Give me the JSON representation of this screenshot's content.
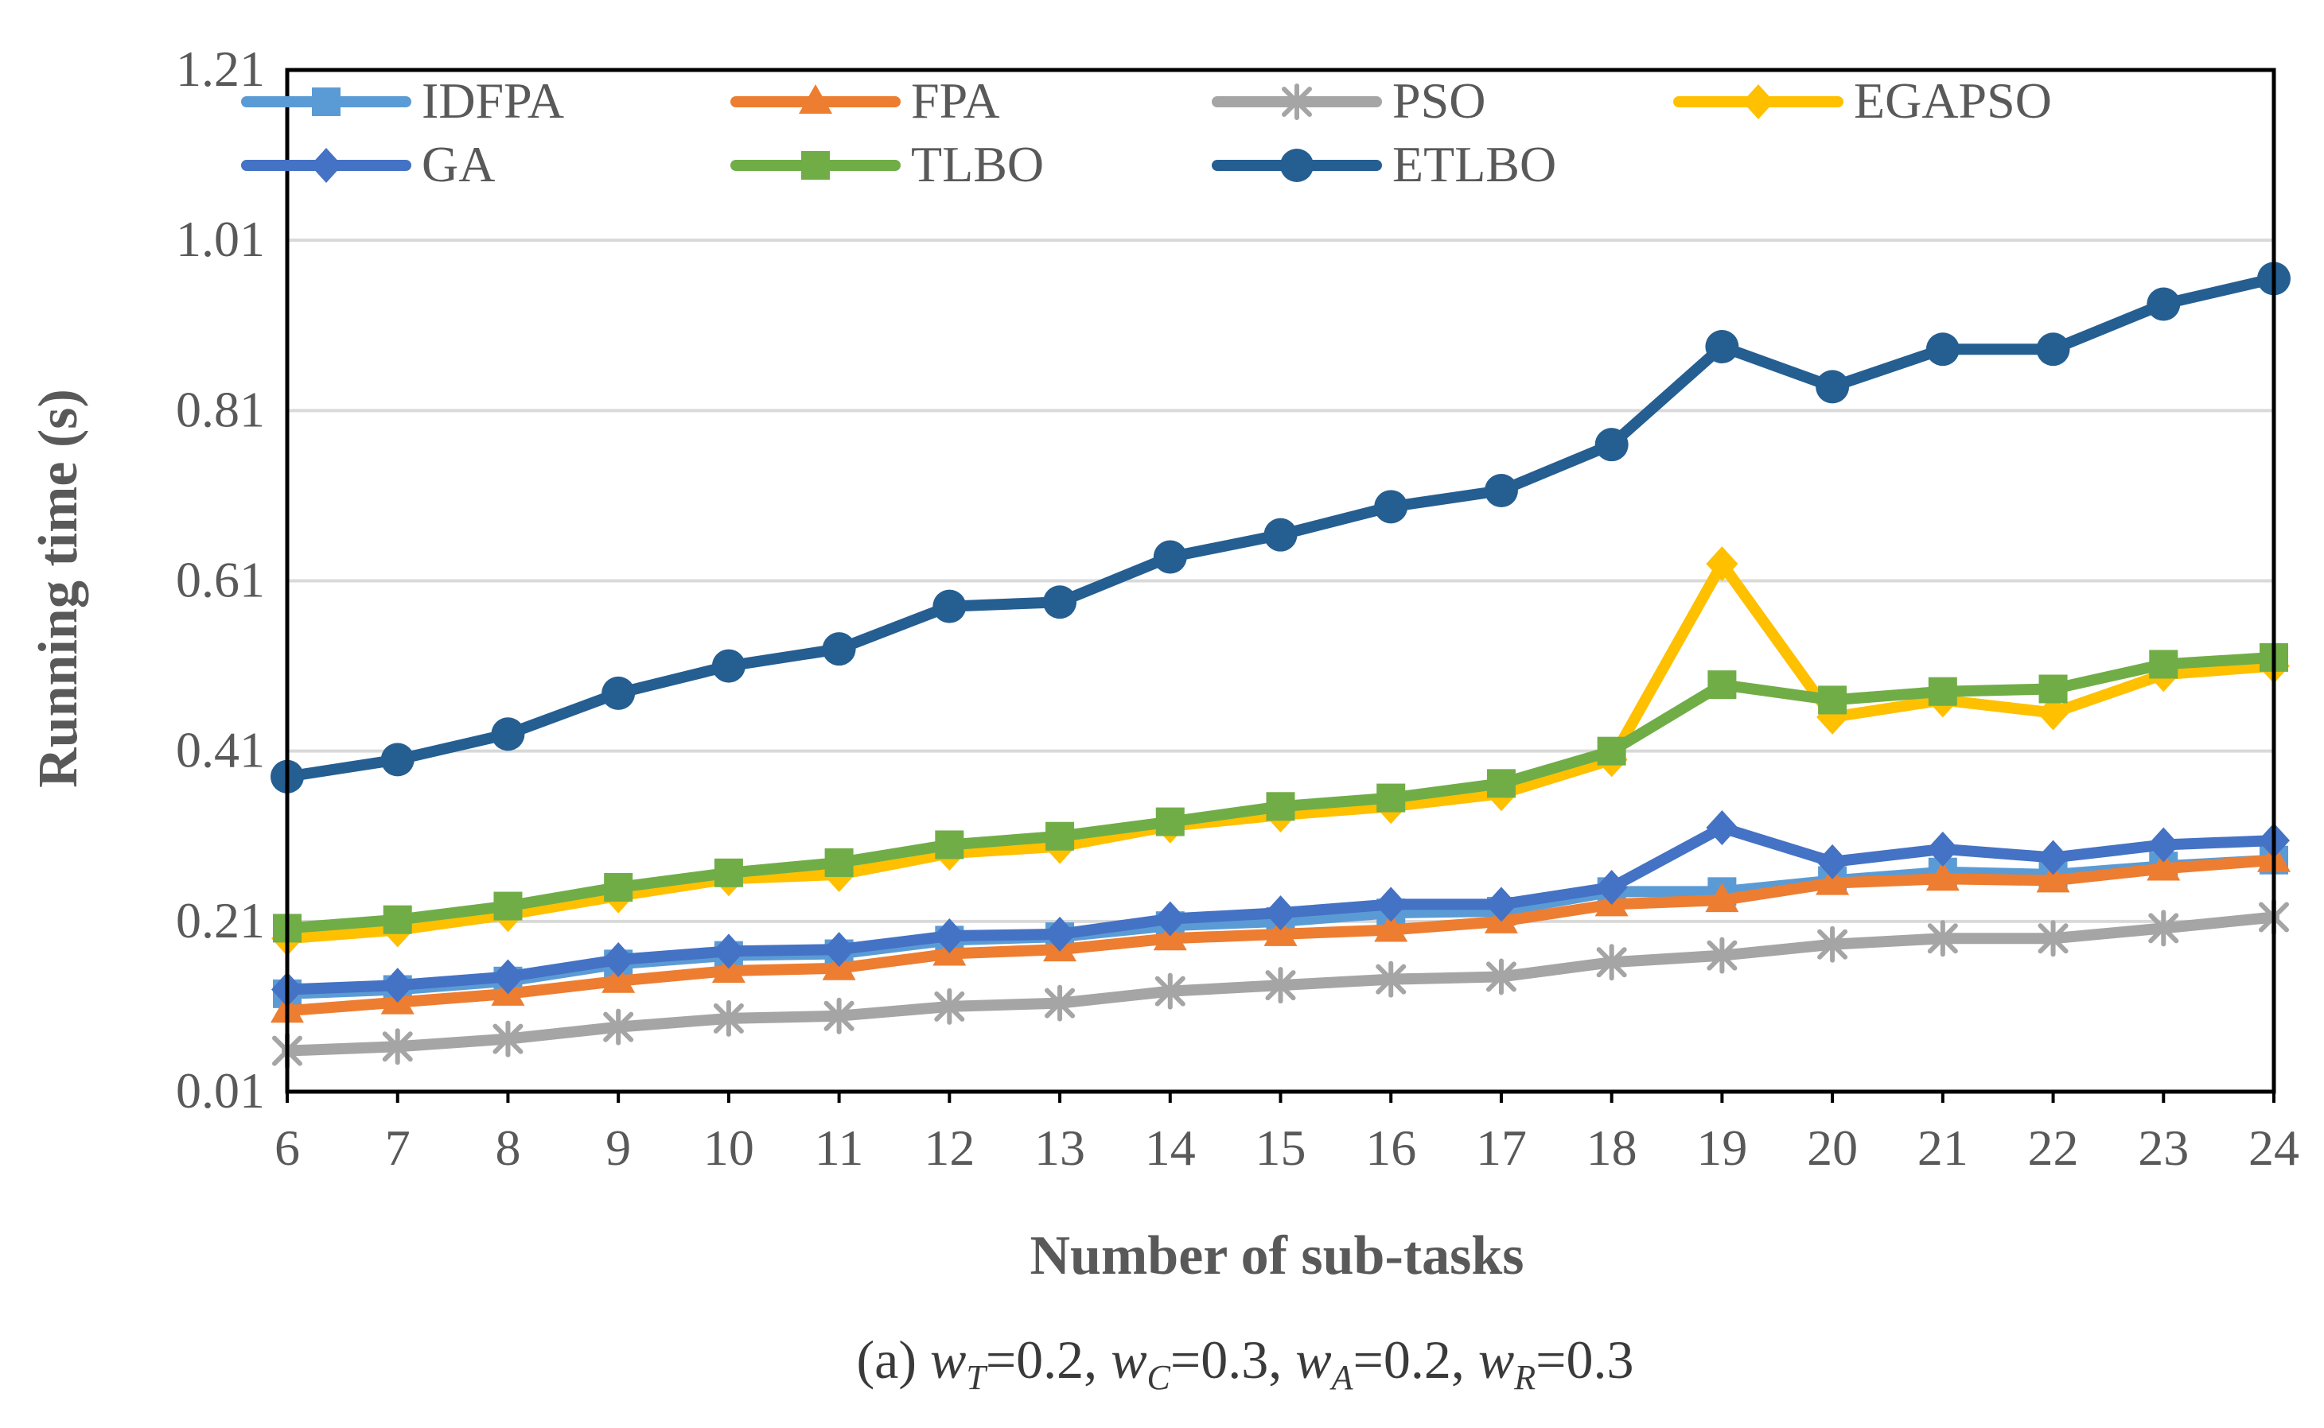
{
  "chart_data": {
    "type": "line",
    "xlabel": "Number of sub-tasks",
    "ylabel": "Running time (s)",
    "categories": [
      6,
      7,
      8,
      9,
      10,
      11,
      12,
      13,
      14,
      15,
      16,
      17,
      18,
      19,
      20,
      21,
      22,
      23,
      24
    ],
    "x_ticks": [
      "6",
      "7",
      "8",
      "9",
      "10",
      "11",
      "12",
      "13",
      "14",
      "15",
      "16",
      "17",
      "18",
      "19",
      "20",
      "21",
      "22",
      "23",
      "24"
    ],
    "y_ticks": [
      "0.01",
      "0.21",
      "0.41",
      "0.61",
      "0.81",
      "1.01",
      "1.21"
    ],
    "ylim": [
      0.01,
      1.21
    ],
    "grid": true,
    "legend_position": "top",
    "series": [
      {
        "name": "IDFPA",
        "color": "#5B9BD5",
        "marker": "square",
        "values": [
          0.125,
          0.13,
          0.14,
          0.16,
          0.17,
          0.172,
          0.188,
          0.192,
          0.205,
          0.21,
          0.22,
          0.222,
          0.245,
          0.245,
          0.258,
          0.268,
          0.265,
          0.275,
          0.282
        ]
      },
      {
        "name": "FPA",
        "color": "#ED7D31",
        "marker": "triangle",
        "values": [
          0.105,
          0.115,
          0.125,
          0.14,
          0.152,
          0.155,
          0.172,
          0.177,
          0.19,
          0.195,
          0.2,
          0.21,
          0.23,
          0.235,
          0.255,
          0.26,
          0.258,
          0.272,
          0.282
        ]
      },
      {
        "name": "PSO",
        "color": "#A5A5A5",
        "marker": "star",
        "values": [
          0.058,
          0.063,
          0.072,
          0.086,
          0.096,
          0.099,
          0.11,
          0.114,
          0.128,
          0.135,
          0.142,
          0.145,
          0.162,
          0.17,
          0.183,
          0.19,
          0.19,
          0.202,
          0.215
        ]
      },
      {
        "name": "EGAPSO",
        "color": "#FFC000",
        "marker": "diamond",
        "values": [
          0.19,
          0.2,
          0.218,
          0.24,
          0.26,
          0.265,
          0.29,
          0.298,
          0.322,
          0.335,
          0.345,
          0.36,
          0.4,
          0.63,
          0.45,
          0.47,
          0.455,
          0.5,
          0.51
        ]
      },
      {
        "name": "GA",
        "color": "#4472C4",
        "marker": "diamond",
        "values": [
          0.13,
          0.135,
          0.145,
          0.165,
          0.175,
          0.177,
          0.193,
          0.195,
          0.213,
          0.22,
          0.23,
          0.23,
          0.25,
          0.32,
          0.28,
          0.295,
          0.285,
          0.3,
          0.305
        ]
      },
      {
        "name": "TLBO",
        "color": "#70AD47",
        "marker": "square",
        "values": [
          0.202,
          0.212,
          0.228,
          0.25,
          0.267,
          0.279,
          0.3,
          0.31,
          0.327,
          0.345,
          0.355,
          0.372,
          0.41,
          0.488,
          0.47,
          0.48,
          0.483,
          0.512,
          0.52
        ]
      },
      {
        "name": "ETLBO",
        "color": "#255E91",
        "marker": "circle",
        "values": [
          0.38,
          0.4,
          0.43,
          0.478,
          0.51,
          0.53,
          0.58,
          0.585,
          0.638,
          0.664,
          0.697,
          0.716,
          0.77,
          0.885,
          0.838,
          0.882,
          0.882,
          0.935,
          0.965
        ]
      }
    ]
  },
  "caption": {
    "prefix": "(a) ",
    "w": "w",
    "T": "T",
    "C": "C",
    "A": "A",
    "R": "R",
    "wT_value": "=0.2, ",
    "wC_value": "=0.3, ",
    "wA_value": "=0.2, ",
    "wR_value": "=0.3"
  }
}
